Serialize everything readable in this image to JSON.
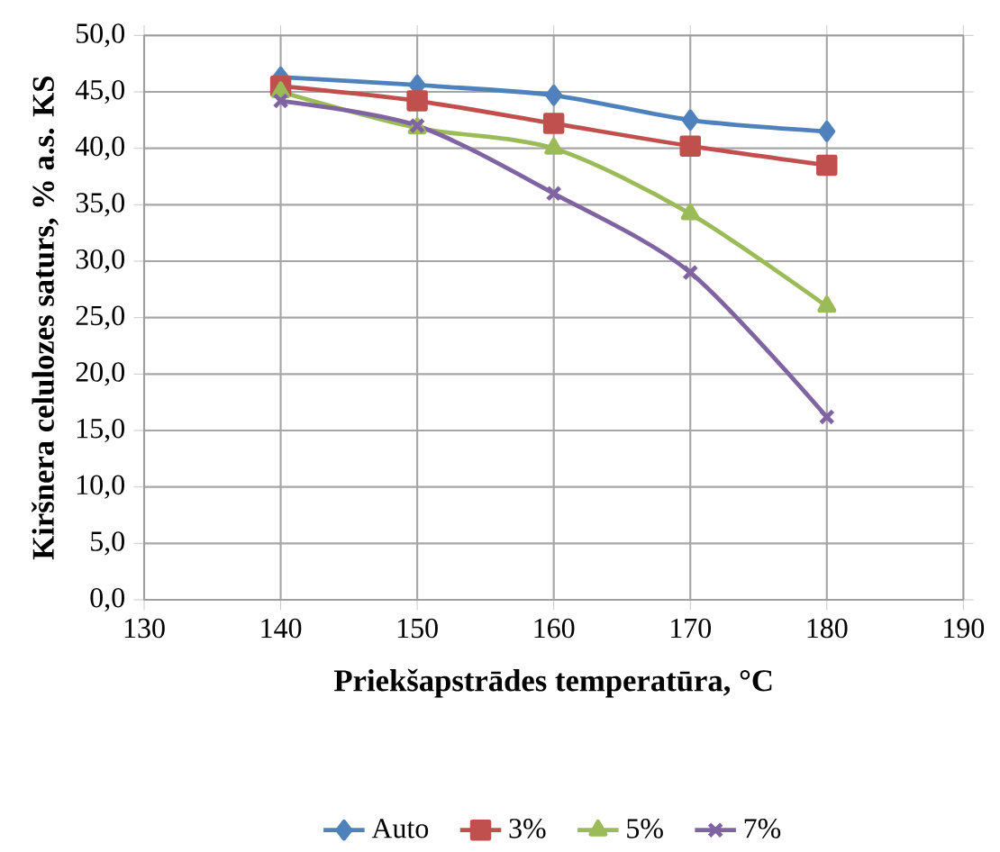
{
  "chart_data": {
    "type": "line",
    "xlabel": "Priekšapstrādes temperatūra, °C",
    "ylabel": "Kiršnera celulozes saturs, % a.s. KS",
    "x": [
      140,
      150,
      160,
      170,
      180
    ],
    "series": [
      {
        "name": "Auto",
        "color": "#4f81bd",
        "marker": "diamond",
        "values": [
          46.3,
          45.6,
          44.7,
          42.5,
          41.5
        ]
      },
      {
        "name": "3%",
        "color": "#c0504d",
        "marker": "square",
        "values": [
          45.5,
          44.2,
          42.2,
          40.2,
          38.5
        ]
      },
      {
        "name": "5%",
        "color": "#9bbb59",
        "marker": "triangle",
        "values": [
          45.0,
          41.8,
          40.0,
          34.2,
          26.0
        ]
      },
      {
        "name": "7%",
        "color": "#8064a2",
        "marker": "cross",
        "values": [
          44.2,
          42.0,
          36.0,
          29.0,
          16.2
        ]
      }
    ],
    "xlim": [
      130,
      190
    ],
    "xticks": [
      130,
      140,
      150,
      160,
      170,
      180,
      190
    ],
    "ylim": [
      0,
      50
    ],
    "yticks": [
      {
        "value": 0,
        "label": "0,0"
      },
      {
        "value": 5,
        "label": "5,0"
      },
      {
        "value": 10,
        "label": "10,0"
      },
      {
        "value": 15,
        "label": "15,0"
      },
      {
        "value": 20,
        "label": "20,0"
      },
      {
        "value": 25,
        "label": "25,0"
      },
      {
        "value": 30,
        "label": "30,0"
      },
      {
        "value": 35,
        "label": "35,0"
      },
      {
        "value": 40,
        "label": "40,0"
      },
      {
        "value": 45,
        "label": "45,0"
      },
      {
        "value": 50,
        "label": "50,0"
      }
    ],
    "grid": true,
    "legend": "bottom",
    "line_style": "solid"
  }
}
